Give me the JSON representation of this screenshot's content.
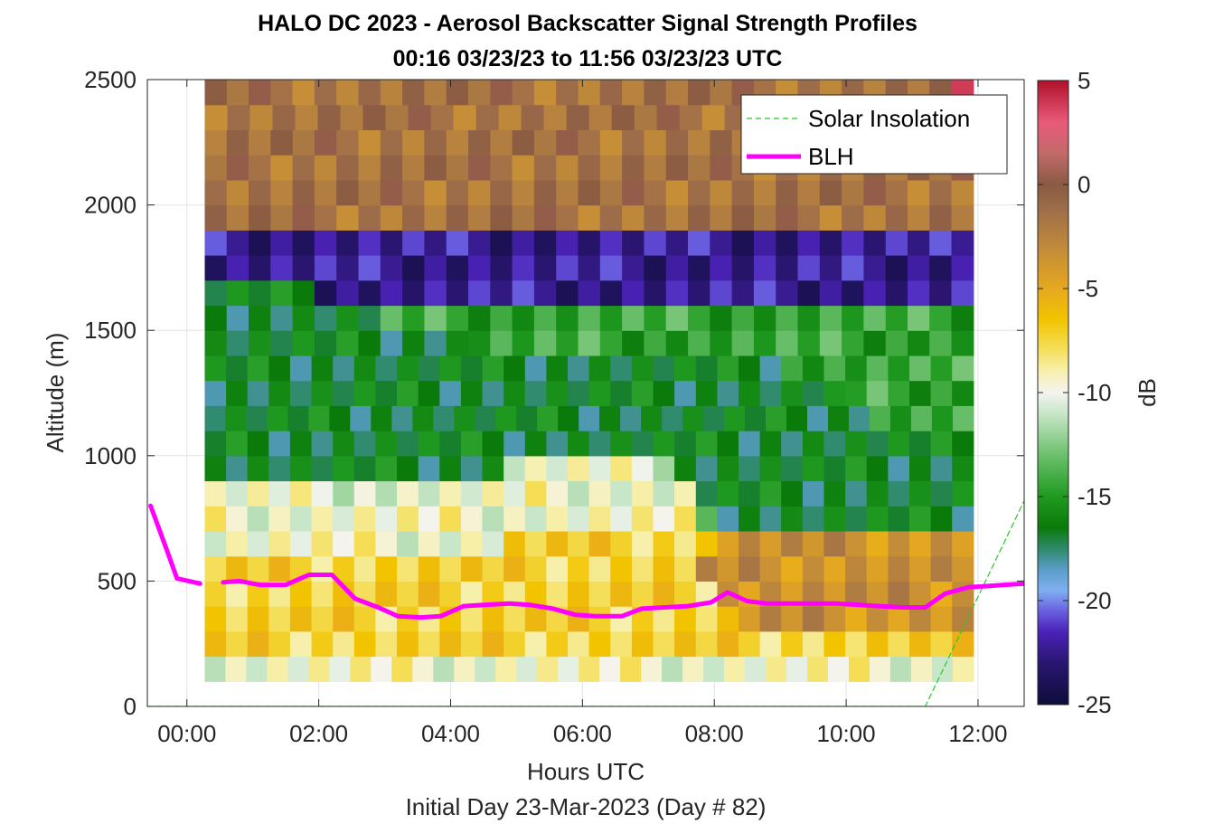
{
  "chart_data": {
    "type": "heatmap",
    "title": "HALO DC 2023 - Aerosol Backscatter Signal Strength Profiles",
    "subtitle": "00:16 03/23/23 to 11:56 03/23/23  UTC",
    "xlabel": "Hours UTC",
    "xlabel2": "Initial Day 23-Mar-2023 (Day # 82)",
    "ylabel": "Altitude (m)",
    "colorbar_label": "dB",
    "xlim": [
      -0.6,
      12.7
    ],
    "ylim": [
      0,
      2500
    ],
    "grid": true,
    "x_ticks": [
      0,
      2,
      4,
      6,
      8,
      10,
      12
    ],
    "x_tick_labels": [
      "00:00",
      "02:00",
      "04:00",
      "06:00",
      "08:00",
      "10:00",
      "12:00"
    ],
    "y_ticks": [
      0,
      500,
      1000,
      1500,
      2000,
      2500
    ],
    "y_tick_labels": [
      "0",
      "500",
      "1000",
      "1500",
      "2000",
      "2500"
    ],
    "colorbar_range": [
      -25,
      5
    ],
    "colorbar_ticks": [
      5,
      0,
      -5,
      -10,
      -15,
      -20,
      -25
    ],
    "colorbar_tick_labels": [
      "5",
      "0",
      "-5",
      "-10",
      "-15",
      "-20",
      "-25"
    ],
    "colormap": [
      [
        -25,
        "#0d0d3a"
      ],
      [
        -23,
        "#2a1670"
      ],
      [
        -21.5,
        "#4a22b8"
      ],
      [
        -20.5,
        "#6a5fe0"
      ],
      [
        -19.5,
        "#7fb0f0"
      ],
      [
        -18.5,
        "#5a9cc8"
      ],
      [
        -17.5,
        "#2e8a6a"
      ],
      [
        -16.5,
        "#0a7a0a"
      ],
      [
        -15,
        "#1f9a1f"
      ],
      [
        -13,
        "#6cc06c"
      ],
      [
        -11,
        "#c8e6c8"
      ],
      [
        -10,
        "#f4f4f0"
      ],
      [
        -9,
        "#f7f0b0"
      ],
      [
        -8,
        "#f5e060"
      ],
      [
        -6.5,
        "#f2c400"
      ],
      [
        -5,
        "#e6a820"
      ],
      [
        -3,
        "#c08a3a"
      ],
      [
        -1,
        "#9a6a4a"
      ],
      [
        0,
        "#8a5a42"
      ],
      [
        1.5,
        "#c26a6a"
      ],
      [
        3,
        "#e85a7a"
      ],
      [
        5,
        "#b0102a"
      ]
    ],
    "data_x_range_hours": [
      0.27,
      11.93
    ],
    "data_y_range_m": [
      100,
      2500
    ],
    "data_rows_bottom_to_top": [
      "wwwwwwwwwwwwwwwwwwwwwwwwwwwwwwwwwwwww",
      "yyyyyyyyyyyyyyyyyyyyyyyyyyyyyyyyyyyy",
      "yyyyyyyyyyyyyyyyyyyyyyyyyooooooooooo",
      "yyyyyyyyyyyyyyyyyyyyyyyyoooooooooooo",
      "yyyyyyyyyyyyyyyyyyyyyyyooooooooooooo",
      "wwwwwwwwwwwwwwyyyyyyyyyyoooooooooooo",
      "wwwwwwwwwwwwwwwwwwwwwwwgGGGGGGGGGGGG",
      "pppppppppppppppwwwwwwppGGGGGGGGGGGGG",
      "GGGGGGGGGGGGGGppppppppGGGGGGGGGGGGGG",
      "GGGGGGGGGGGGGGGGGGGGGGGGGGGGGGGGGGGG",
      "GGGGGGGGGGGGGGGGGGGGGGGGGGGGGGGGlllll",
      "GGGGGGGGGGGGGGGGGGGGGGGGGGGGGGllllll",
      "GGGGGGGGGGGGGGGGGGGGGGGGGGGlllllllll",
      "GGGGGGGGGGGGlllllllllllllllllllllll",
      "GGGGGGGGlllllllllllllllllllllllllll",
      "GGGGGvvvvvvvvvvvvvvvvvvvvvvvvvvvvvv",
      "vvvvvvvvvvvvvvvvvvvvvvvvvvvvvvvvvvv",
      "vvvvvvvvvvvvvvvvvvvvvvvvvvvvvvvvvvv",
      "ddddddddddddddddddddddddddddddddddd",
      "ddddddddddddddddddddddddddddddddddd",
      "ddddddddddddddddddddddddddddddddddd",
      "ddddddddddddddddddddddddddddddddddd",
      "dddddddddddddddddddddddddddddddddd",
      "ddddddddddddddddddddddddddddddddddr"
    ],
    "series": [
      {
        "name": "Solar Insolation",
        "color": "#22cc22",
        "style": "dashed",
        "x": [
          -0.6,
          11.2,
          12.7
        ],
        "y": [
          0,
          0,
          820
        ]
      },
      {
        "name": "BLH",
        "color": "#ff00ff",
        "style": "solid",
        "segments": [
          {
            "x": [
              -0.55,
              -0.3,
              -0.15,
              0.2
            ],
            "y": [
              800,
              620,
              510,
              490
            ]
          },
          {
            "x": [
              0.55,
              0.8,
              1.1,
              1.5,
              1.85,
              2.2,
              2.55,
              2.9,
              3.2,
              3.55,
              3.85,
              4.2,
              4.5,
              4.9,
              5.2,
              5.55,
              5.9,
              6.2,
              6.6,
              6.9,
              7.25,
              7.6,
              7.95,
              8.2,
              8.5,
              8.8,
              9.1,
              9.5,
              9.85,
              10.2,
              10.5,
              10.85,
              11.2,
              11.5,
              11.85,
              12.15,
              12.4,
              12.7
            ],
            "y": [
              495,
              500,
              485,
              485,
              525,
              525,
              430,
              395,
              360,
              355,
              360,
              400,
              405,
              410,
              405,
              390,
              365,
              360,
              360,
              390,
              395,
              400,
              415,
              455,
              420,
              410,
              410,
              410,
              410,
              405,
              400,
              395,
              395,
              450,
              475,
              480,
              485,
              490
            ]
          }
        ]
      }
    ],
    "legend": {
      "placement": "top-right",
      "entries": [
        "Solar Insolation",
        "BLH"
      ]
    }
  }
}
